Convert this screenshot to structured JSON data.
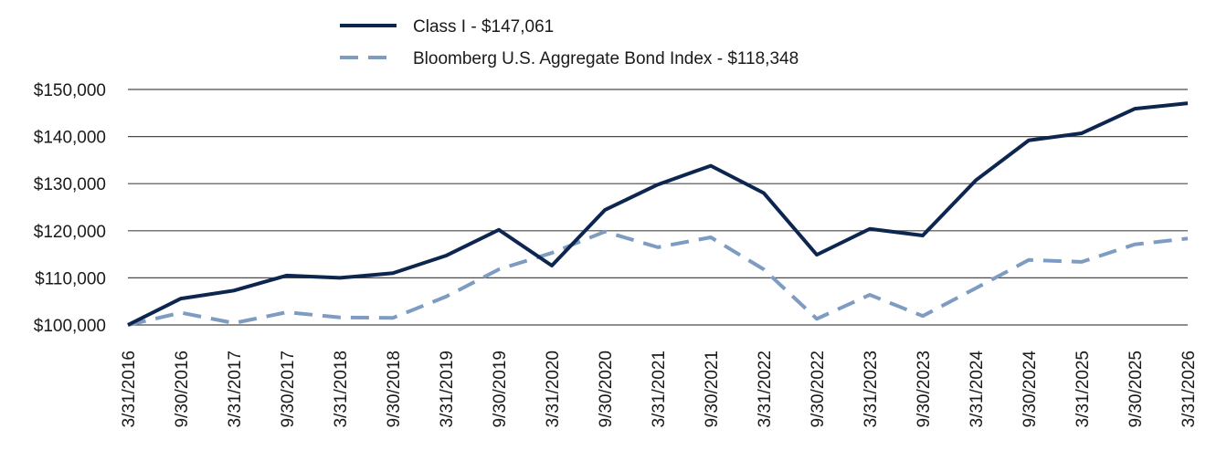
{
  "chart_data": {
    "type": "line",
    "title": "",
    "xlabel": "",
    "ylabel": "",
    "categories": [
      "3/31/2016",
      "9/30/2016",
      "3/31/2017",
      "9/30/2017",
      "3/31/2018",
      "9/30/2018",
      "3/31/2019",
      "9/30/2019",
      "3/31/2020",
      "9/30/2020",
      "3/31/2021",
      "9/30/2021",
      "3/31/2022",
      "9/30/2022",
      "3/31/2023",
      "9/30/2023",
      "3/31/2024",
      "9/30/2024",
      "3/31/2025",
      "9/30/2025",
      "3/31/2026"
    ],
    "series": [
      {
        "name": "Class I - $147,061",
        "color": "#0d2650",
        "dash": "solid",
        "values": [
          100000,
          105600,
          107300,
          110500,
          110000,
          111000,
          114700,
          120200,
          112600,
          124400,
          129800,
          133800,
          128000,
          114900,
          120400,
          119000,
          130700,
          139200,
          140700,
          145900,
          147061
        ]
      },
      {
        "name": "Bloomberg U.S. Aggregate Bond Index - $118,348",
        "color": "#7e9cc2",
        "dash": "dashed",
        "values": [
          100000,
          102600,
          100400,
          102700,
          101600,
          101500,
          106000,
          111800,
          115300,
          119800,
          116500,
          118600,
          111800,
          101300,
          106400,
          101900,
          107800,
          113800,
          113400,
          117100,
          118348
        ]
      }
    ],
    "y_ticks": [
      "$100,000",
      "$110,000",
      "$120,000",
      "$130,000",
      "$140,000",
      "$150,000"
    ],
    "ylim": [
      100000,
      150000
    ],
    "grid": true,
    "legend_position": "top-left"
  }
}
